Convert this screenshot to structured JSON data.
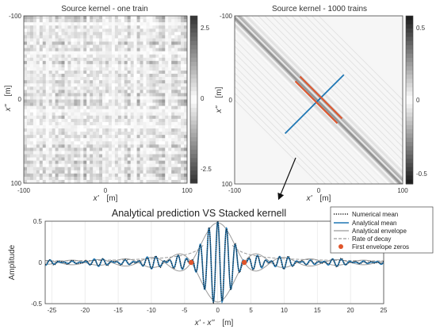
{
  "chart_data": [
    {
      "type": "heatmap",
      "title": "Source kernel  - one train",
      "xlabel": "x'",
      "xunit": "[m]",
      "ylabel": "x''",
      "yunit": "[m]",
      "xlim": [
        -100,
        100
      ],
      "ylim": [
        -100,
        100
      ],
      "x_ticks": [
        "-100",
        "0",
        "100"
      ],
      "y_ticks": [
        "-100",
        "0",
        "100"
      ],
      "colorbar": {
        "ticks": [
          "2.5",
          "0",
          "-2.5"
        ],
        "range": [
          -2.8,
          2.8
        ]
      },
      "pattern": "noisy checkerboard (random field)"
    },
    {
      "type": "heatmap",
      "title": "Source kernel - 1000 trains",
      "xlabel": "x'",
      "xunit": "[m]",
      "ylabel": "x''",
      "yunit": "[m]",
      "xlim": [
        -100,
        100
      ],
      "ylim": [
        -100,
        100
      ],
      "x_ticks": [
        "-100",
        "0",
        "100"
      ],
      "y_ticks": [
        "-100",
        "0",
        "100"
      ],
      "colorbar": {
        "ticks": [
          "0.5",
          "0",
          "-0.5"
        ],
        "range": [
          -0.6,
          0.6
        ]
      },
      "pattern": "diagonal band along x' = x''",
      "overlays": [
        {
          "kind": "cross-section",
          "color": "#1f77b4",
          "from": [
            -40,
            40
          ],
          "to": [
            30,
            -30
          ]
        },
        {
          "kind": "band-edge",
          "color": "#e0552b",
          "from": [
            -25,
            -25
          ],
          "to": [
            25,
            25
          ],
          "offset": -4
        },
        {
          "kind": "band-edge",
          "color": "#e0552b",
          "from": [
            -25,
            -25
          ],
          "to": [
            25,
            25
          ],
          "offset": 4
        }
      ]
    },
    {
      "type": "line",
      "title": "Analytical prediction VS Stacked kernell",
      "xlabel": "x' - x''",
      "xunit": "[m]",
      "ylabel": "Amplitude",
      "xlim": [
        -26,
        25
      ],
      "ylim": [
        -0.5,
        0.5
      ],
      "x_ticks": [
        "-25",
        "-20",
        "-15",
        "-10",
        "-5",
        "0",
        "5",
        "10",
        "15",
        "20",
        "25"
      ],
      "y_ticks": [
        "0.5",
        "0",
        "-0.5"
      ],
      "wavelength": 1.33,
      "envelope_zero": 4.0,
      "decay_constant": 3.0,
      "peak_amplitude": 0.48,
      "series": [
        {
          "name": "Numerical mean",
          "style": "dotted",
          "color": "#1a1a1a"
        },
        {
          "name": "Analytical mean",
          "style": "solid",
          "color": "#1f77b4"
        },
        {
          "name": "Analytical envelope",
          "style": "solid",
          "color": "#9a9a9a"
        },
        {
          "name": "Rate of decay",
          "style": "dashed",
          "color": "#9a9a9a"
        },
        {
          "name": "First envelope zeros",
          "style": "marker",
          "color": "#e0552b",
          "points": [
            [
              -4,
              0
            ],
            [
              4,
              0
            ]
          ]
        }
      ]
    }
  ],
  "colors": {
    "blue": "#1f77b4",
    "orange": "#e0552b",
    "gray": "#9a9a9a"
  }
}
